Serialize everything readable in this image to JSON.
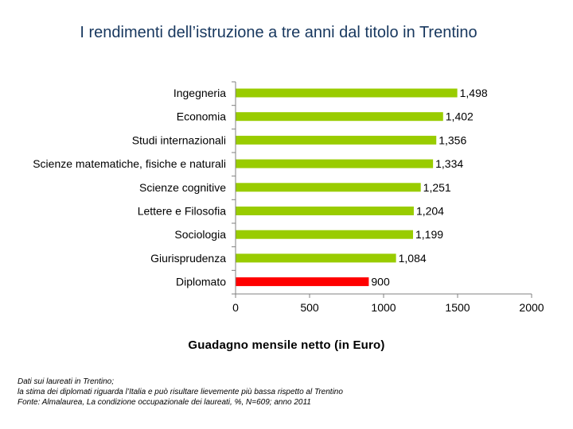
{
  "chart_data": {
    "type": "bar",
    "orientation": "horizontal",
    "title": "I rendimenti dell’istruzione a tre anni dal titolo in Trentino",
    "xlabel": "Guadagno mensile netto (in Euro)",
    "ylabel": "",
    "categories": [
      "Ingegneria",
      "Economia",
      "Studi internazionali",
      "Scienze matematiche, fisiche e naturali",
      "Scienze cognitive",
      "Lettere e Filosofia",
      "Sociologia",
      "Giurisprudenza",
      "Diplomato"
    ],
    "values": [
      1498,
      1402,
      1356,
      1334,
      1251,
      1204,
      1199,
      1084,
      900
    ],
    "value_labels": [
      "1,498",
      "1,402",
      "1,356",
      "1,334",
      "1,251",
      "1,204",
      "1,199",
      "1,084",
      "900"
    ],
    "bar_colors": [
      "#99cc00",
      "#99cc00",
      "#99cc00",
      "#99cc00",
      "#99cc00",
      "#99cc00",
      "#99cc00",
      "#99cc00",
      "#ff0000"
    ],
    "xlim": [
      0,
      2000
    ],
    "xticks": [
      0,
      500,
      1000,
      1500,
      2000
    ],
    "xtick_labels": [
      "0",
      "500",
      "1000",
      "1500",
      "2000"
    ],
    "grid": false
  },
  "notes": [
    "Dati sui laureati in Trentino;",
    "la stima dei diplomati riguarda l’Italia e può risultare lievemente più bassa rispetto al Trentino",
    "Fonte: Almalaurea, La condizione occupazionale dei laureati, %, N=609; anno 2011"
  ]
}
